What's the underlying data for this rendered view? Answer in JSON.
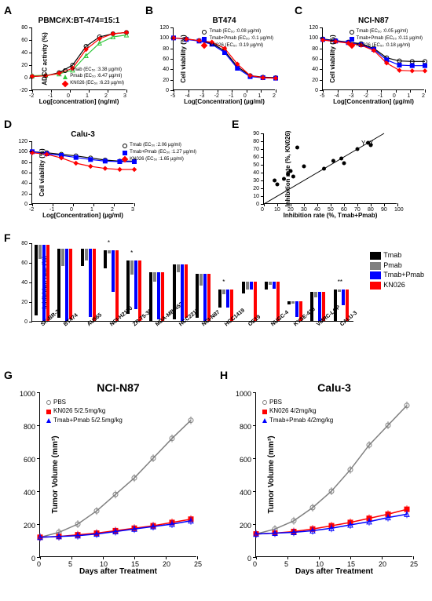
{
  "panelA": {
    "label": "A",
    "title": "PBMC#X:BT-474=15:1",
    "ylabel": "ADCC activity (%)",
    "xlabel": "Log[concentration] (ng/ml)",
    "ylim": [
      -20,
      80
    ],
    "yticks": [
      -20,
      0,
      20,
      40,
      60,
      80
    ],
    "xlim": [
      -2,
      3
    ],
    "xticks": [
      -2,
      -1,
      0,
      1,
      2,
      3
    ],
    "series": [
      {
        "name": "Tmab",
        "ec50": "3.38 µg/ml",
        "color": "#000000",
        "marker": "circle",
        "y": [
          2,
          3,
          8,
          20,
          50,
          65,
          70,
          72
        ]
      },
      {
        "name": "Pmab",
        "ec50": "6.47 µg/ml",
        "color": "#31c83c",
        "marker": "triangle",
        "y": [
          3,
          4,
          6,
          12,
          35,
          55,
          65,
          68
        ]
      },
      {
        "name": "KN026",
        "ec50": "6.23 µg/ml",
        "color": "#ff0000",
        "marker": "diamond",
        "y": [
          2,
          3,
          7,
          15,
          45,
          62,
          70,
          72
        ]
      }
    ]
  },
  "panelB": {
    "label": "B",
    "title": "BT474",
    "ylabel": "Cell viability (%)",
    "xlabel": "Log[Concentration] (µg/ml)",
    "ylim": [
      0,
      120
    ],
    "yticks": [
      0,
      20,
      40,
      60,
      80,
      100,
      120
    ],
    "xlim": [
      -5,
      2
    ],
    "xticks": [
      -5,
      -4,
      -3,
      -2,
      -1,
      0,
      1,
      2
    ],
    "series": [
      {
        "name": "Tmab",
        "ec50": "0.08 µg/ml",
        "color": "#000000",
        "marker": "circle",
        "y": [
          100,
          98,
          95,
          90,
          75,
          45,
          28,
          25,
          24
        ]
      },
      {
        "name": "Tmab+Pmab",
        "ec50": "0.1 µg/ml",
        "color": "#0000ff",
        "marker": "square",
        "y": [
          100,
          97,
          94,
          88,
          72,
          42,
          26,
          24,
          23
        ]
      },
      {
        "name": "KN026",
        "ec50": "0.19 µg/ml",
        "color": "#ff0000",
        "marker": "diamond",
        "y": [
          100,
          98,
          95,
          92,
          80,
          50,
          28,
          24,
          23
        ]
      }
    ]
  },
  "panelC": {
    "label": "C",
    "title": "NCI-N87",
    "ylabel": "Cell viability (%)",
    "xlabel": "Log[Concentration] (µg/ml)",
    "ylim": [
      0,
      120
    ],
    "yticks": [
      0,
      20,
      40,
      60,
      80,
      100,
      120
    ],
    "xlim": [
      -5,
      2
    ],
    "xticks": [
      -5,
      -4,
      -3,
      -2,
      -1,
      0,
      1,
      2
    ],
    "series": [
      {
        "name": "Tmab",
        "ec50": "0.05 µg/ml",
        "color": "#000000",
        "marker": "circle",
        "y": [
          98,
          95,
          92,
          89,
          80,
          62,
          56,
          55,
          55
        ]
      },
      {
        "name": "Tmab+Pmab",
        "ec50": "0.11 µg/ml",
        "color": "#0000ff",
        "marker": "square",
        "y": [
          97,
          94,
          91,
          87,
          78,
          58,
          48,
          47,
          47
        ]
      },
      {
        "name": "KN026",
        "ec50": "0.18 µg/ml",
        "color": "#ff0000",
        "marker": "diamond",
        "y": [
          96,
          93,
          90,
          86,
          76,
          52,
          38,
          37,
          37
        ]
      }
    ]
  },
  "panelD": {
    "label": "D",
    "title": "Calu-3",
    "ylabel": "Cell viability (%)",
    "xlabel": "Log[Concentration] (µg/ml)",
    "ylim": [
      0,
      120
    ],
    "yticks": [
      0,
      20,
      40,
      60,
      80,
      100,
      120
    ],
    "xlim": [
      -2,
      3
    ],
    "xticks": [
      -2,
      -1,
      0,
      1,
      2,
      3
    ],
    "series": [
      {
        "name": "Tmab",
        "ec50": "2.06 µg/ml",
        "color": "#000000",
        "marker": "circle",
        "y": [
          100,
          98,
          95,
          92,
          88,
          84,
          82,
          82
        ]
      },
      {
        "name": "Tmab+Pmab",
        "ec50": "1.27 µg/ml",
        "color": "#0000ff",
        "marker": "square",
        "y": [
          100,
          96,
          93,
          89,
          85,
          82,
          81,
          81
        ]
      },
      {
        "name": "KN026",
        "ec50": "1.65 µg/ml",
        "color": "#ff0000",
        "marker": "diamond",
        "y": [
          98,
          95,
          88,
          78,
          72,
          68,
          66,
          66
        ]
      }
    ]
  },
  "panelE": {
    "label": "E",
    "ylabel": "Inhibition rate (%, KN026)",
    "xlabel": "Inhibition rate (%, Tmab+Pmab)",
    "ylim": [
      0,
      90
    ],
    "yticks": [
      0,
      10,
      20,
      30,
      40,
      50,
      60,
      70,
      80,
      90
    ],
    "xlim": [
      0,
      100
    ],
    "xticks": [
      0,
      10,
      20,
      30,
      40,
      50,
      60,
      70,
      80,
      90,
      100
    ],
    "line_label": "Y=X",
    "points": [
      [
        8,
        30
      ],
      [
        10,
        25
      ],
      [
        15,
        32
      ],
      [
        18,
        38
      ],
      [
        20,
        42
      ],
      [
        22,
        35
      ],
      [
        25,
        72
      ],
      [
        30,
        48
      ],
      [
        45,
        45
      ],
      [
        52,
        55
      ],
      [
        58,
        58
      ],
      [
        60,
        52
      ],
      [
        70,
        70
      ],
      [
        78,
        78
      ],
      [
        80,
        75
      ]
    ]
  },
  "panelF": {
    "label": "F",
    "ylabel": "Inhibition rate (%)",
    "ylim": [
      0,
      80
    ],
    "yticks": [
      0,
      20,
      40,
      60,
      80
    ],
    "categories": [
      "SK-BR-3",
      "BT474",
      "AU565",
      "NCI-H2170",
      "ZR-75-30",
      "MDA-MB-453",
      "HCC2218",
      "NCI-N87",
      "HCC1419",
      "OE19",
      "NUGC-4",
      "KYSE-410",
      "VMRC-LCP",
      "CALU-3"
    ],
    "series": [
      {
        "name": "Tmab",
        "color": "#000000"
      },
      {
        "name": "Pmab",
        "color": "#808080"
      },
      {
        "name": "Tmab+Pmab",
        "color": "#0000ff"
      },
      {
        "name": "KN026",
        "color": "#ff0000"
      }
    ],
    "values": {
      "Tmab": [
        72,
        71,
        18,
        18,
        55,
        50,
        56,
        45,
        18,
        12,
        8,
        3,
        30,
        32
      ],
      "Pmab": [
        15,
        18,
        12,
        3,
        15,
        10,
        8,
        12,
        5,
        8,
        3,
        2,
        6,
        2
      ],
      "Tmab+Pmab": [
        78,
        74,
        70,
        42,
        50,
        48,
        58,
        48,
        18,
        8,
        7,
        16,
        30,
        16
      ],
      "KN026": [
        78,
        72,
        74,
        72,
        62,
        50,
        55,
        48,
        32,
        40,
        40,
        20,
        30,
        32
      ]
    },
    "sig": {
      "NCI-H2170": "*",
      "ZR-75-30": "*",
      "HCC1419": "*",
      "CALU-3": "**"
    }
  },
  "panelG": {
    "label": "G",
    "title": "NCI-N87",
    "ylabel": "Tumor Volume (mm³)",
    "xlabel": "Days after Treatment",
    "ylim": [
      0,
      1000
    ],
    "yticks": [
      0,
      200,
      400,
      600,
      800,
      1000
    ],
    "xlim": [
      0,
      25
    ],
    "xticks": [
      0,
      5,
      10,
      15,
      20,
      25
    ],
    "series": [
      {
        "name": "PBS",
        "color": "#808080",
        "marker": "circle",
        "x": [
          0,
          3,
          6,
          9,
          12,
          15,
          18,
          21,
          24
        ],
        "y": [
          120,
          150,
          200,
          280,
          380,
          480,
          600,
          720,
          830
        ]
      },
      {
        "name": "KN026 5/2.5mg/kg",
        "color": "#ff0000",
        "marker": "square",
        "x": [
          0,
          3,
          6,
          9,
          12,
          15,
          18,
          21,
          24
        ],
        "y": [
          120,
          125,
          135,
          145,
          160,
          175,
          190,
          210,
          230
        ]
      },
      {
        "name": "Tmab+Pmab 5/2.5mg/kg",
        "color": "#0000ff",
        "marker": "triangle",
        "x": [
          0,
          3,
          6,
          9,
          12,
          15,
          18,
          21,
          24
        ],
        "y": [
          120,
          125,
          130,
          140,
          155,
          170,
          185,
          200,
          220
        ]
      }
    ]
  },
  "panelH": {
    "label": "H",
    "title": "Calu-3",
    "ylabel": "Tumor Volume (mm³)",
    "xlabel": "Days after Treatment",
    "ylim": [
      0,
      1000
    ],
    "yticks": [
      0,
      200,
      400,
      600,
      800,
      1000
    ],
    "xlim": [
      0,
      25
    ],
    "xticks": [
      0,
      5,
      10,
      15,
      20,
      25
    ],
    "series": [
      {
        "name": "PBS",
        "color": "#808080",
        "marker": "circle",
        "x": [
          0,
          3,
          6,
          9,
          12,
          15,
          18,
          21,
          24
        ],
        "y": [
          140,
          170,
          220,
          300,
          400,
          530,
          680,
          800,
          920
        ]
      },
      {
        "name": "KN026 4/2mg/kg",
        "color": "#ff0000",
        "marker": "square",
        "x": [
          0,
          3,
          6,
          9,
          12,
          15,
          18,
          21,
          24
        ],
        "y": [
          140,
          145,
          155,
          170,
          190,
          210,
          235,
          260,
          290
        ]
      },
      {
        "name": "Tmab+Pmab 4/2mg/kg",
        "color": "#0000ff",
        "marker": "triangle",
        "x": [
          0,
          3,
          6,
          9,
          12,
          15,
          18,
          21,
          24
        ],
        "y": [
          140,
          145,
          150,
          160,
          175,
          195,
          215,
          240,
          260
        ]
      }
    ]
  }
}
